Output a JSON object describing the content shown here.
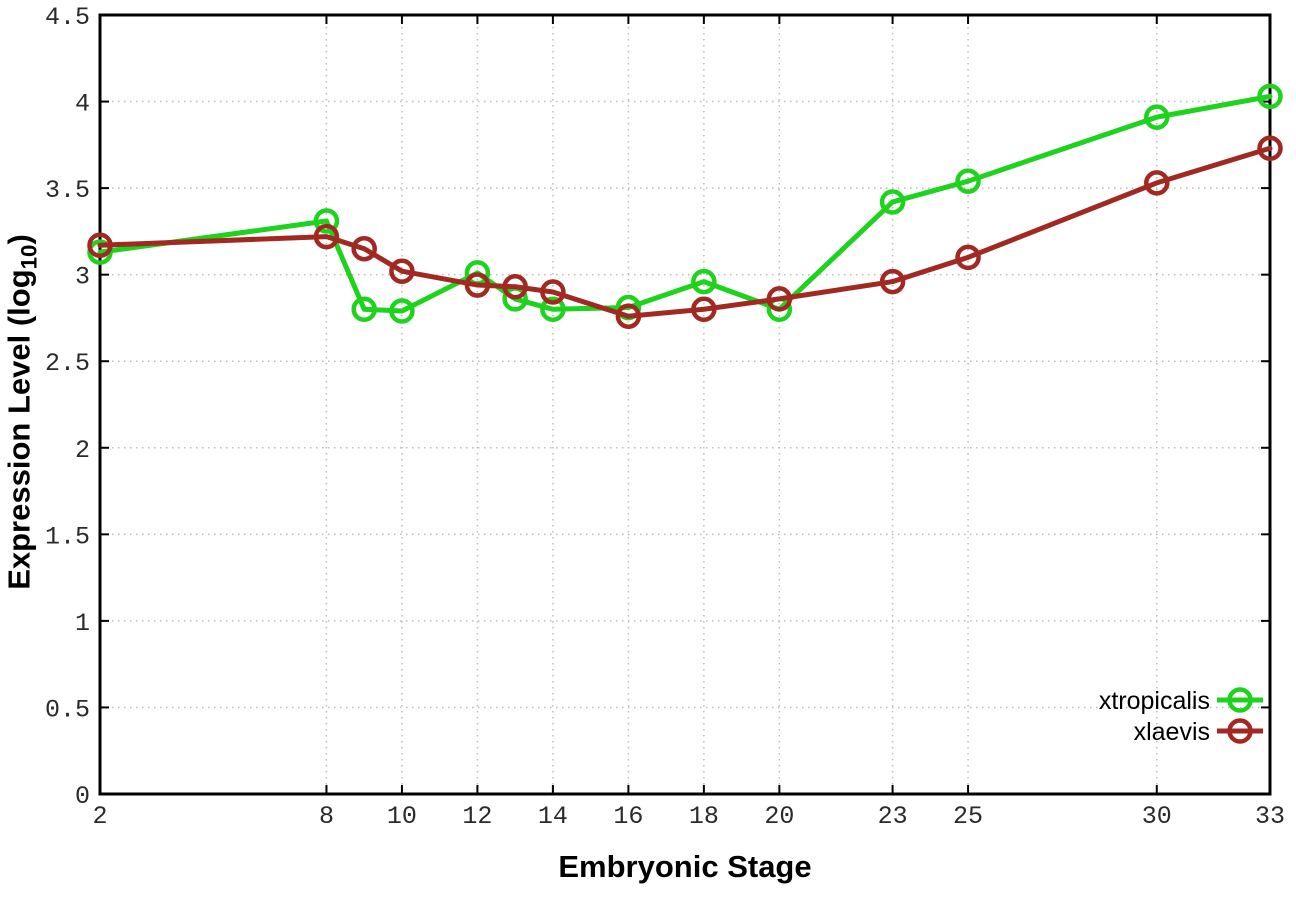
{
  "figure": {
    "background": "#ffffff",
    "xlabel": "Embryonic Stage",
    "ylabel_pre": "Expression Level (log",
    "ylabel_sub": "10",
    "ylabel_post": ")"
  },
  "chart_data": {
    "type": "line",
    "title": "",
    "xlabel": "Embryonic Stage",
    "ylabel": "Expression Level (log10)",
    "xlim": [
      2,
      33
    ],
    "ylim": [
      0,
      4.5
    ],
    "grid": true,
    "grid_style": "dotted",
    "x": [
      2,
      8,
      9,
      10,
      12,
      13,
      14,
      16,
      18,
      20,
      23,
      25,
      30,
      33
    ],
    "xticks": [
      2,
      8,
      10,
      12,
      14,
      16,
      18,
      20,
      23,
      25,
      30,
      33
    ],
    "xtick_labels": [
      "2",
      "8",
      "10",
      "12",
      "14",
      "16",
      "18",
      "20",
      "23",
      "25",
      "30",
      "33"
    ],
    "yticks": [
      0,
      0.5,
      1,
      1.5,
      2,
      2.5,
      3,
      3.5,
      4,
      4.5
    ],
    "ytick_labels": [
      "0",
      "0.5",
      "1",
      "1.5",
      "2",
      "2.5",
      "3",
      "3.5",
      "4",
      "4.5"
    ],
    "series": [
      {
        "name": "xtropicalis",
        "color": "#1ed31e",
        "marker": "open-circle",
        "values": [
          3.13,
          3.31,
          2.8,
          2.79,
          3.01,
          2.86,
          2.8,
          2.81,
          2.96,
          2.8,
          3.42,
          3.54,
          3.91,
          4.03
        ]
      },
      {
        "name": "xlaevis",
        "color": "#a22922",
        "marker": "open-circle",
        "values": [
          3.17,
          3.22,
          3.15,
          3.02,
          2.94,
          2.93,
          2.9,
          2.76,
          2.8,
          2.86,
          2.96,
          3.1,
          3.53,
          3.73
        ]
      }
    ],
    "legend": {
      "position": "bottom-right",
      "entries": [
        "xtropicalis",
        "xlaevis"
      ]
    },
    "axis_color": "#000000",
    "grid_color": "#bdbdbd",
    "tick_label_color": "#2a2a2a"
  }
}
